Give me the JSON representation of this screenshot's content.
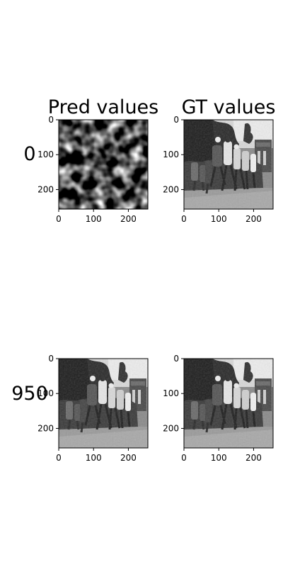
{
  "chart_data": {
    "type": "image-grid",
    "column_titles": [
      "Pred values",
      "GT values"
    ],
    "row_labels": [
      "0",
      "950"
    ],
    "panels": [
      {
        "row": 0,
        "col": 0,
        "image": "noise-blobs",
        "xticks": [
          "0",
          "100",
          "200"
        ],
        "yticks": [
          "0",
          "100",
          "200"
        ]
      },
      {
        "row": 0,
        "col": 1,
        "image": "grayscale-crowd-photo",
        "xticks": [
          "0",
          "100",
          "200"
        ],
        "yticks": [
          "0",
          "100",
          "200"
        ]
      },
      {
        "row": 1,
        "col": 0,
        "image": "grayscale-crowd-photo",
        "xticks": [
          "0",
          "100",
          "200"
        ],
        "yticks": [
          "0",
          "100",
          "200"
        ]
      },
      {
        "row": 1,
        "col": 1,
        "image": "grayscale-crowd-photo",
        "xticks": [
          "0",
          "100",
          "200"
        ],
        "yticks": [
          "0",
          "100",
          "200"
        ]
      }
    ],
    "xlim": [
      0,
      256
    ],
    "ylim": [
      256,
      0
    ]
  }
}
